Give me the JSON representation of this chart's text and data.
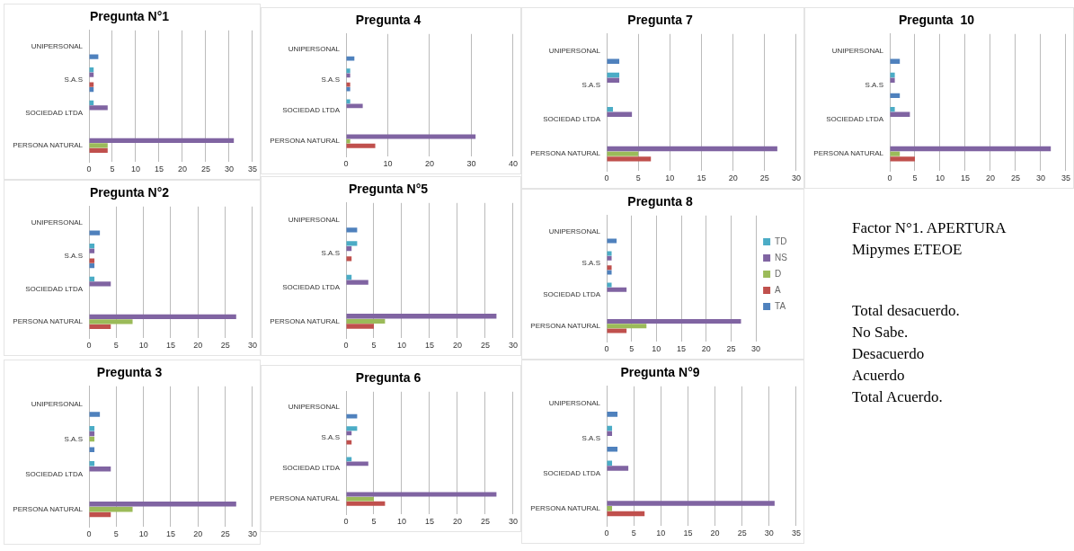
{
  "chart_data": [
    {
      "type": "bar",
      "orientation": "horizontal",
      "title": "Pregunta N°1",
      "categories": [
        "UNIPERSONAL",
        "S.A.S",
        "SOCIEDAD LTDA",
        "PERSONA NATURAL"
      ],
      "xlim": [
        0,
        35
      ],
      "xticks": [
        0,
        5,
        10,
        15,
        20,
        25,
        30,
        35
      ],
      "grid": "x",
      "series": [
        {
          "color": "#4bacc6",
          "values": [
            null,
            1,
            1,
            null
          ]
        },
        {
          "color": "#8064a2",
          "values": [
            null,
            1,
            4,
            31
          ]
        },
        {
          "color": "#9bbb59",
          "values": [
            null,
            null,
            null,
            4
          ]
        },
        {
          "color": "#c0504d",
          "values": [
            null,
            1,
            null,
            4
          ]
        },
        {
          "color": "#4f81bd",
          "values": [
            2,
            1,
            null,
            null
          ]
        }
      ]
    },
    {
      "type": "bar",
      "orientation": "horizontal",
      "title": "Pregunta 4",
      "categories": [
        "UNIPERSONAL",
        "S.A.S",
        "SOCIEDAD LTDA",
        "PERSONA NATURAL"
      ],
      "xlim": [
        0,
        40
      ],
      "xticks": [
        0,
        10,
        20,
        30,
        40
      ],
      "grid": "x",
      "series": [
        {
          "color": "#4bacc6",
          "values": [
            null,
            1,
            1,
            null
          ]
        },
        {
          "color": "#8064a2",
          "values": [
            null,
            1,
            4,
            31
          ]
        },
        {
          "color": "#9bbb59",
          "values": [
            null,
            null,
            null,
            1
          ]
        },
        {
          "color": "#c0504d",
          "values": [
            null,
            1,
            null,
            7
          ]
        },
        {
          "color": "#4f81bd",
          "values": [
            2,
            1,
            null,
            null
          ]
        }
      ]
    },
    {
      "type": "bar",
      "orientation": "horizontal",
      "title": "Pregunta 7",
      "categories": [
        "UNIPERSONAL",
        "S.A.S",
        "SOCIEDAD LTDA",
        "PERSONA NATURAL"
      ],
      "xlim": [
        0,
        30
      ],
      "xticks": [
        0,
        5,
        10,
        15,
        20,
        25,
        30
      ],
      "grid": "x",
      "series": [
        {
          "color": "#4bacc6",
          "values": [
            null,
            2,
            1,
            null
          ]
        },
        {
          "color": "#8064a2",
          "values": [
            null,
            2,
            4,
            27
          ]
        },
        {
          "color": "#9bbb59",
          "values": [
            null,
            null,
            null,
            5
          ]
        },
        {
          "color": "#c0504d",
          "values": [
            null,
            null,
            null,
            7
          ]
        },
        {
          "color": "#4f81bd",
          "values": [
            2,
            null,
            null,
            null
          ]
        }
      ]
    },
    {
      "type": "bar",
      "orientation": "horizontal",
      "title": "Pregunta  10",
      "categories": [
        "UNIPERSONAL",
        "S.A.S",
        "SOCIEDAD LTDA",
        "PERSONA NATURAL"
      ],
      "xlim": [
        0,
        35
      ],
      "xticks": [
        0,
        5,
        10,
        15,
        20,
        25,
        30,
        35
      ],
      "grid": "x",
      "series": [
        {
          "color": "#4bacc6",
          "values": [
            null,
            1,
            1,
            null
          ]
        },
        {
          "color": "#8064a2",
          "values": [
            null,
            1,
            4,
            32
          ]
        },
        {
          "color": "#9bbb59",
          "values": [
            null,
            null,
            null,
            2
          ]
        },
        {
          "color": "#c0504d",
          "values": [
            null,
            null,
            null,
            5
          ]
        },
        {
          "color": "#4f81bd",
          "values": [
            2,
            2,
            null,
            null
          ]
        }
      ]
    },
    {
      "type": "bar",
      "orientation": "horizontal",
      "title": "Pregunta N°2",
      "categories": [
        "UNIPERSONAL",
        "S.A.S",
        "SOCIEDAD LTDA",
        "PERSONA NATURAL"
      ],
      "xlim": [
        0,
        30
      ],
      "xticks": [
        0,
        5,
        10,
        15,
        20,
        25,
        30
      ],
      "grid": "x",
      "series": [
        {
          "color": "#4bacc6",
          "values": [
            null,
            1,
            1,
            null
          ]
        },
        {
          "color": "#8064a2",
          "values": [
            null,
            1,
            4,
            27
          ]
        },
        {
          "color": "#9bbb59",
          "values": [
            null,
            null,
            null,
            8
          ]
        },
        {
          "color": "#c0504d",
          "values": [
            null,
            1,
            null,
            4
          ]
        },
        {
          "color": "#4f81bd",
          "values": [
            2,
            1,
            null,
            null
          ]
        }
      ]
    },
    {
      "type": "bar",
      "orientation": "horizontal",
      "title": "Pregunta N°5",
      "categories": [
        "UNIPERSONAL",
        "S.A.S",
        "SOCIEDAD LTDA",
        "PERSONA NATURAL"
      ],
      "xlim": [
        0,
        30
      ],
      "xticks": [
        0,
        5,
        10,
        15,
        20,
        25,
        30
      ],
      "grid": "x",
      "series": [
        {
          "color": "#4bacc6",
          "values": [
            null,
            2,
            1,
            null
          ]
        },
        {
          "color": "#8064a2",
          "values": [
            null,
            1,
            4,
            27
          ]
        },
        {
          "color": "#9bbb59",
          "values": [
            null,
            null,
            null,
            7
          ]
        },
        {
          "color": "#c0504d",
          "values": [
            null,
            1,
            null,
            5
          ]
        },
        {
          "color": "#4f81bd",
          "values": [
            2,
            null,
            null,
            null
          ]
        }
      ]
    },
    {
      "type": "bar",
      "orientation": "horizontal",
      "title": "Pregunta 8",
      "categories": [
        "UNIPERSONAL",
        "S.A.S",
        "SOCIEDAD LTDA",
        "PERSONA NATURAL"
      ],
      "xlim": [
        0,
        30
      ],
      "xticks": [
        0,
        5,
        10,
        15,
        20,
        25,
        30
      ],
      "grid": "x",
      "legend": "right",
      "series": [
        {
          "name": "TD",
          "color": "#4bacc6",
          "values": [
            null,
            1,
            1,
            null
          ]
        },
        {
          "name": "NS",
          "color": "#8064a2",
          "values": [
            null,
            1,
            4,
            27
          ]
        },
        {
          "name": "D",
          "color": "#9bbb59",
          "values": [
            null,
            null,
            null,
            8
          ]
        },
        {
          "name": "A",
          "color": "#c0504d",
          "values": [
            null,
            1,
            null,
            4
          ]
        },
        {
          "name": "TA",
          "color": "#4f81bd",
          "values": [
            2,
            1,
            null,
            null
          ]
        }
      ]
    },
    {
      "type": "other",
      "title": "Factor N°1. APERTURA Mipymes ETEOE",
      "annotations": [
        "Total desacuerdo.",
        "No Sabe.",
        "Desacuerdo",
        "Acuerdo",
        "Total Acuerdo."
      ]
    },
    {
      "type": "bar",
      "orientation": "horizontal",
      "title": "Pregunta 3",
      "categories": [
        "UNIPERSONAL",
        "S.A.S",
        "SOCIEDAD LTDA",
        "PERSONA NATURAL"
      ],
      "xlim": [
        0,
        30
      ],
      "xticks": [
        0,
        5,
        10,
        15,
        20,
        25,
        30
      ],
      "grid": "x",
      "series": [
        {
          "color": "#4bacc6",
          "values": [
            null,
            1,
            1,
            null
          ]
        },
        {
          "color": "#8064a2",
          "values": [
            null,
            1,
            4,
            27
          ]
        },
        {
          "color": "#9bbb59",
          "values": [
            null,
            1,
            null,
            8
          ]
        },
        {
          "color": "#c0504d",
          "values": [
            null,
            null,
            null,
            4
          ]
        },
        {
          "color": "#4f81bd",
          "values": [
            2,
            1,
            null,
            null
          ]
        }
      ]
    },
    {
      "type": "bar",
      "orientation": "horizontal",
      "title": "Pregunta 6",
      "categories": [
        "UNIPERSONAL",
        "S.A.S",
        "SOCIEDAD LTDA",
        "PERSONA NATURAL"
      ],
      "xlim": [
        0,
        30
      ],
      "xticks": [
        0,
        5,
        10,
        15,
        20,
        25,
        30
      ],
      "grid": "x",
      "series": [
        {
          "color": "#4bacc6",
          "values": [
            null,
            2,
            1,
            null
          ]
        },
        {
          "color": "#8064a2",
          "values": [
            null,
            1,
            4,
            27
          ]
        },
        {
          "color": "#9bbb59",
          "values": [
            null,
            null,
            null,
            5
          ]
        },
        {
          "color": "#c0504d",
          "values": [
            null,
            1,
            null,
            7
          ]
        },
        {
          "color": "#4f81bd",
          "values": [
            2,
            null,
            null,
            null
          ]
        }
      ]
    },
    {
      "type": "bar",
      "orientation": "horizontal",
      "title": "Pregunta N°9",
      "categories": [
        "UNIPERSONAL",
        "S.A.S",
        "SOCIEDAD LTDA",
        "PERSONA NATURAL"
      ],
      "xlim": [
        0,
        35
      ],
      "xticks": [
        0,
        5,
        10,
        15,
        20,
        25,
        30,
        35
      ],
      "grid": "x",
      "series": [
        {
          "color": "#4bacc6",
          "values": [
            null,
            1,
            1,
            null
          ]
        },
        {
          "color": "#8064a2",
          "values": [
            null,
            1,
            4,
            31
          ]
        },
        {
          "color": "#9bbb59",
          "values": [
            null,
            null,
            null,
            1
          ]
        },
        {
          "color": "#c0504d",
          "values": [
            null,
            null,
            null,
            7
          ]
        },
        {
          "color": "#4f81bd",
          "values": [
            2,
            2,
            null,
            null
          ]
        }
      ]
    }
  ]
}
